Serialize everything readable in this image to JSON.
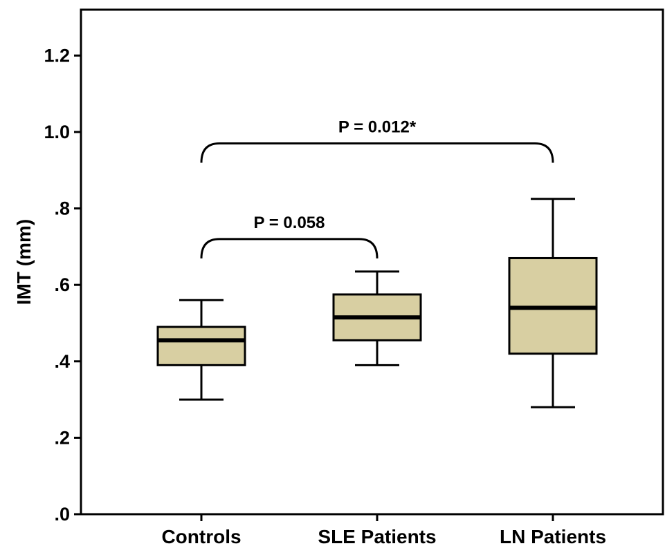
{
  "chart_data": {
    "type": "box",
    "ylabel": "IMT (mm)",
    "xlabel": "",
    "ylim": [
      0,
      1.32
    ],
    "yticks": [
      0.0,
      0.2,
      0.4,
      0.6,
      0.8,
      1.0,
      1.2
    ],
    "ytick_labels": [
      ".0",
      ".2",
      ".4",
      ".6",
      ".8",
      "1.0",
      "1.2"
    ],
    "categories": [
      "Controls",
      "SLE Patients",
      "LN Patients"
    ],
    "boxes": [
      {
        "category": "Controls",
        "min": 0.3,
        "q1": 0.39,
        "median": 0.455,
        "q3": 0.49,
        "max": 0.56
      },
      {
        "category": "SLE Patients",
        "min": 0.39,
        "q1": 0.455,
        "median": 0.515,
        "q3": 0.575,
        "max": 0.635
      },
      {
        "category": "LN Patients",
        "min": 0.28,
        "q1": 0.42,
        "median": 0.54,
        "q3": 0.67,
        "max": 0.825
      }
    ],
    "annotations": [
      {
        "text": "P = 0.058",
        "from": "Controls",
        "to": "SLE Patients",
        "y": 0.72
      },
      {
        "text": "P = 0.012*",
        "from": "Controls",
        "to": "LN Patients",
        "y": 0.97
      }
    ],
    "grid": false,
    "box_color": "#d8cfa2",
    "line_color": "#000000"
  }
}
